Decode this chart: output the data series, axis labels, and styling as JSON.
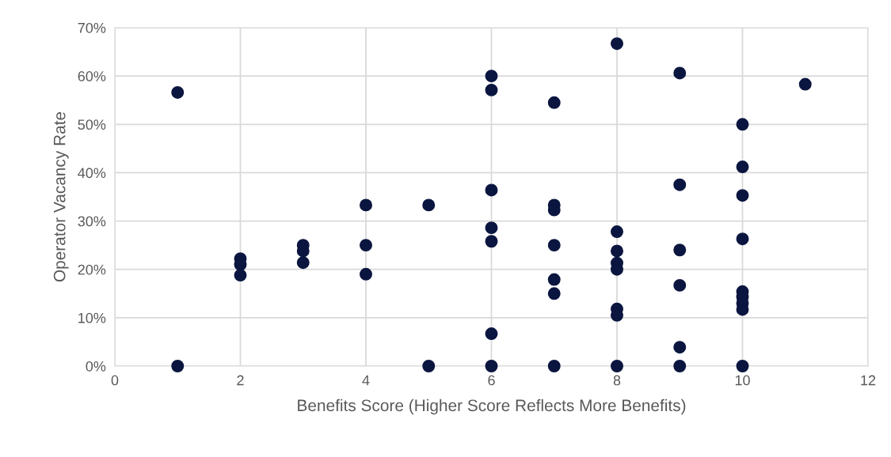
{
  "chart_data": {
    "type": "scatter",
    "xlabel": "Benefits Score (Higher Score Reflects More Benefits)",
    "ylabel": "Operator Vacancy Rate",
    "series": [
      {
        "color": "#0b1640",
        "x": [
          1,
          1,
          2,
          2,
          2,
          3,
          3,
          3,
          4,
          4,
          4,
          5,
          5,
          6,
          6,
          6,
          6,
          6,
          6,
          6,
          7,
          7,
          7,
          7,
          7,
          7,
          7,
          8,
          8,
          8,
          8,
          8,
          8,
          8,
          8,
          9,
          9,
          9,
          9,
          9,
          9,
          10,
          10,
          10,
          10,
          10,
          10,
          10,
          10,
          10,
          11
        ],
        "values": [
          56.6,
          0,
          22.2,
          21.0,
          18.8,
          25.0,
          23.8,
          21.4,
          33.3,
          25.0,
          19.0,
          33.3,
          0,
          60.0,
          57.1,
          36.4,
          28.6,
          25.8,
          6.7,
          0,
          54.5,
          33.3,
          32.3,
          25.0,
          17.9,
          15.0,
          0,
          66.7,
          27.8,
          23.8,
          21.3,
          20.0,
          11.8,
          10.5,
          0,
          60.6,
          37.5,
          24.0,
          16.7,
          3.9,
          0,
          50.0,
          41.2,
          35.3,
          26.3,
          15.4,
          14.3,
          13.0,
          11.7,
          0,
          58.3
        ]
      }
    ],
    "xlim": [
      0,
      12
    ],
    "xticks": [
      0,
      2,
      4,
      6,
      8,
      10,
      12
    ],
    "ylim": [
      0,
      70
    ],
    "yticks": [
      {
        "value": 0,
        "label": "0%"
      },
      {
        "value": 10,
        "label": "10%"
      },
      {
        "value": 20,
        "label": "20%"
      },
      {
        "value": 30,
        "label": "30%"
      },
      {
        "value": 40,
        "label": "40%"
      },
      {
        "value": 50,
        "label": "50%"
      },
      {
        "value": 60,
        "label": "60%"
      },
      {
        "value": 70,
        "label": "70%"
      }
    ],
    "grid": true,
    "marker": "circle"
  }
}
